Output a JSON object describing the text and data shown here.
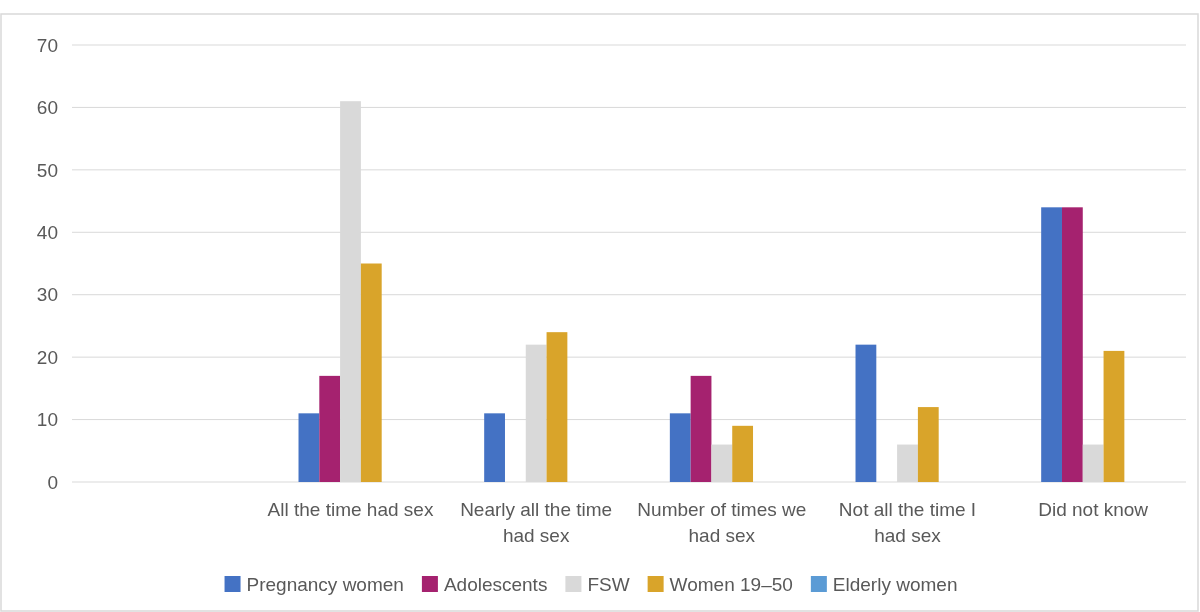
{
  "chart_data": {
    "type": "bar",
    "categories": [
      null,
      "All the time had sex",
      "Nearly all the time had sex",
      "Number of times we had sex",
      "Not all the time I had sex",
      "Did not know"
    ],
    "series": [
      {
        "name": "Pregnancy women",
        "color": "#4472c4",
        "values": [
          null,
          11,
          11,
          11,
          22,
          44
        ]
      },
      {
        "name": "Adolescents",
        "color": "#a5226f",
        "values": [
          null,
          17,
          0,
          17,
          0,
          44
        ]
      },
      {
        "name": "FSW",
        "color": "#d9d9d9",
        "values": [
          null,
          61,
          22,
          6,
          6,
          6
        ]
      },
      {
        "name": "Women 19–50",
        "color": "#d9a42a",
        "values": [
          null,
          35,
          24,
          9,
          12,
          21
        ]
      },
      {
        "name": "Elderly women",
        "color": "#5b9bd5",
        "values": [
          null,
          null,
          null,
          null,
          null,
          null
        ]
      }
    ],
    "ylim": [
      0,
      70
    ],
    "yticks": [
      0,
      10,
      20,
      30,
      40,
      50,
      60,
      70
    ],
    "grid": "y",
    "legend": "bottom"
  }
}
